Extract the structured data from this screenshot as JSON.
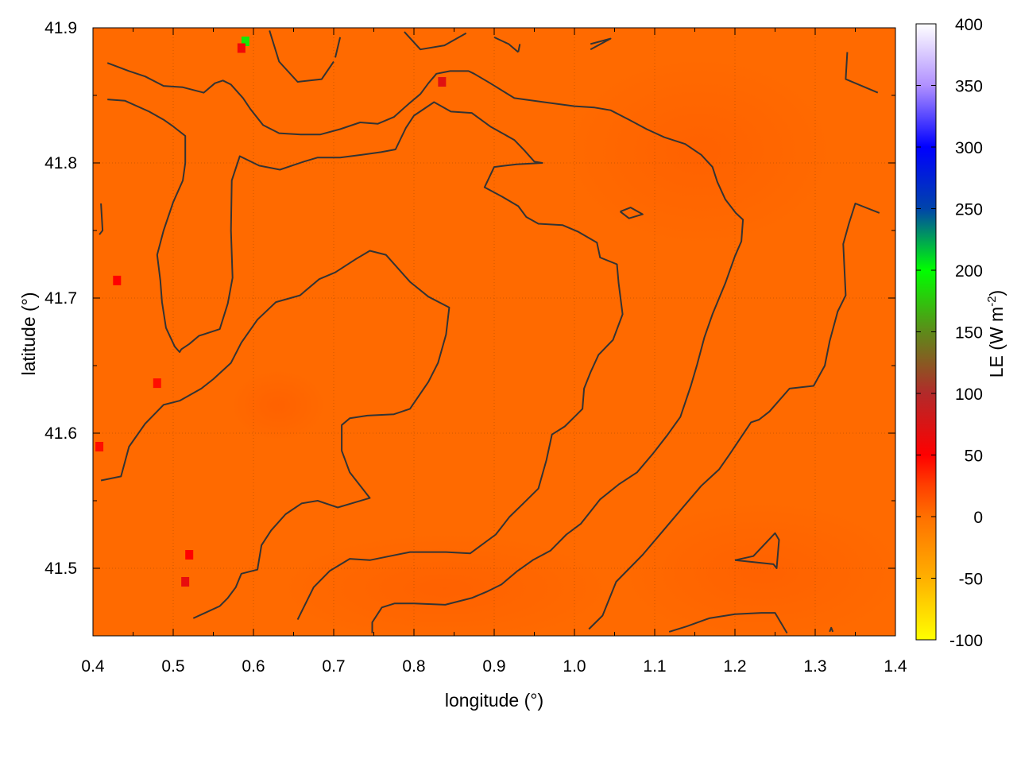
{
  "chart_data": {
    "type": "heatmap",
    "title": "",
    "xlabel": "longitude (°)",
    "ylabel": "latitude (°)",
    "xlim": [
      0.4,
      1.4
    ],
    "ylim": [
      41.45,
      41.9
    ],
    "x_ticks": [
      0.4,
      0.5,
      0.6,
      0.7,
      0.8,
      0.9,
      1.0,
      1.1,
      1.2,
      1.3,
      1.4
    ],
    "x_tick_labels": [
      "0.4",
      "0.5",
      "0.6",
      "0.7",
      "0.8",
      "0.9",
      "1.0",
      "1.1",
      "1.2",
      "1.3",
      "1.4"
    ],
    "y_ticks": [
      41.5,
      41.6,
      41.7,
      41.8,
      41.9
    ],
    "y_tick_labels": [
      "41.5",
      "41.6",
      "41.7",
      "41.8",
      "41.9"
    ],
    "grid": true,
    "colorbar": {
      "label": "LE (W m",
      "label_sup": "-2",
      "label_end": ")",
      "range": [
        -100,
        400
      ],
      "ticks": [
        -100,
        -50,
        0,
        50,
        100,
        150,
        200,
        250,
        300,
        350,
        400
      ],
      "tick_labels": [
        "-100",
        "-50",
        "0",
        "50",
        "100",
        "150",
        "200",
        "250",
        "300",
        "350",
        "400"
      ],
      "stops": [
        {
          "value": -100,
          "color": "#ffff00"
        },
        {
          "value": -50,
          "color": "#ffb000"
        },
        {
          "value": 0,
          "color": "#ff7000"
        },
        {
          "value": 25,
          "color": "#ff4000"
        },
        {
          "value": 50,
          "color": "#ff0000"
        },
        {
          "value": 100,
          "color": "#b22a2a"
        },
        {
          "value": 150,
          "color": "#5e8a1a"
        },
        {
          "value": 200,
          "color": "#00ff00"
        },
        {
          "value": 250,
          "color": "#0044aa"
        },
        {
          "value": 300,
          "color": "#0000ff"
        },
        {
          "value": 350,
          "color": "#b090ff"
        },
        {
          "value": 400,
          "color": "#ffffff"
        }
      ]
    },
    "field": {
      "background_value": 12,
      "background_color": "#ff6a00",
      "hotspots": [
        {
          "lon": 0.59,
          "lat": 41.89,
          "value": 190
        },
        {
          "lon": 0.585,
          "lat": 41.885,
          "value": 60
        },
        {
          "lon": 0.835,
          "lat": 41.86,
          "value": 70
        },
        {
          "lon": 0.43,
          "lat": 41.713,
          "value": 50
        },
        {
          "lon": 0.48,
          "lat": 41.637,
          "value": 45
        },
        {
          "lon": 0.408,
          "lat": 41.59,
          "value": 45
        },
        {
          "lon": 0.515,
          "lat": 41.49,
          "value": 65
        },
        {
          "lon": 0.52,
          "lat": 41.51,
          "value": 50
        }
      ]
    },
    "contour_color": "#333333",
    "contours": [
      [
        [
          0.418,
          41.874
        ],
        [
          0.445,
          41.868
        ],
        [
          0.465,
          41.864
        ],
        [
          0.488,
          41.857
        ],
        [
          0.512,
          41.856
        ],
        [
          0.538,
          41.852
        ],
        [
          0.552,
          41.859
        ],
        [
          0.562,
          41.861
        ],
        [
          0.572,
          41.858
        ],
        [
          0.587,
          41.848
        ],
        [
          0.596,
          41.84
        ],
        [
          0.612,
          41.828
        ],
        [
          0.632,
          41.822
        ],
        [
          0.659,
          41.821
        ],
        [
          0.683,
          41.821
        ],
        [
          0.708,
          41.825
        ],
        [
          0.733,
          41.83
        ],
        [
          0.755,
          41.829
        ],
        [
          0.775,
          41.834
        ],
        [
          0.794,
          41.844
        ],
        [
          0.808,
          41.851
        ],
        [
          0.818,
          41.859
        ],
        [
          0.828,
          41.866
        ],
        [
          0.845,
          41.868
        ],
        [
          0.868,
          41.868
        ],
        [
          0.875,
          41.866
        ],
        [
          0.895,
          41.859
        ],
        [
          0.925,
          41.848
        ],
        [
          0.962,
          41.845
        ],
        [
          1.0,
          41.842
        ],
        [
          1.025,
          41.841
        ],
        [
          1.045,
          41.839
        ],
        [
          1.068,
          41.832
        ],
        [
          1.09,
          41.825
        ],
        [
          1.112,
          41.819
        ],
        [
          1.138,
          41.814
        ],
        [
          1.158,
          41.806
        ],
        [
          1.172,
          41.797
        ],
        [
          1.178,
          41.786
        ],
        [
          1.188,
          41.773
        ],
        [
          1.201,
          41.763
        ],
        [
          1.21,
          41.758
        ],
        [
          1.208,
          41.742
        ],
        [
          1.2,
          41.731
        ],
        [
          1.188,
          41.711
        ],
        [
          1.172,
          41.688
        ],
        [
          1.162,
          41.671
        ],
        [
          1.153,
          41.651
        ],
        [
          1.145,
          41.635
        ],
        [
          1.132,
          41.612
        ],
        [
          1.115,
          41.598
        ],
        [
          1.098,
          41.585
        ],
        [
          1.078,
          41.571
        ],
        [
          1.055,
          41.562
        ],
        [
          1.032,
          41.551
        ],
        [
          1.008,
          41.533
        ],
        [
          0.99,
          41.525
        ],
        [
          0.97,
          41.513
        ],
        [
          0.948,
          41.506
        ],
        [
          0.929,
          41.498
        ],
        [
          0.909,
          41.488
        ],
        [
          0.892,
          41.483
        ],
        [
          0.872,
          41.478
        ],
        [
          0.839,
          41.473
        ],
        [
          0.8,
          41.474
        ],
        [
          0.776,
          41.474
        ],
        [
          0.76,
          41.471
        ],
        [
          0.748,
          41.46
        ],
        [
          0.748,
          41.452
        ]
      ],
      [
        [
          0.418,
          41.847
        ],
        [
          0.44,
          41.846
        ],
        [
          0.47,
          41.838
        ],
        [
          0.488,
          41.832
        ],
        [
          0.5,
          41.827
        ],
        [
          0.515,
          41.82
        ],
        [
          0.515,
          41.8
        ],
        [
          0.512,
          41.787
        ],
        [
          0.5,
          41.771
        ],
        [
          0.488,
          41.75
        ],
        [
          0.48,
          41.732
        ],
        [
          0.484,
          41.713
        ],
        [
          0.486,
          41.697
        ],
        [
          0.491,
          41.678
        ],
        [
          0.502,
          41.664
        ],
        [
          0.508,
          41.66
        ],
        [
          0.51,
          41.662
        ],
        [
          0.52,
          41.666
        ],
        [
          0.532,
          41.672
        ],
        [
          0.558,
          41.677
        ],
        [
          0.568,
          41.696
        ],
        [
          0.574,
          41.715
        ],
        [
          0.572,
          41.75
        ],
        [
          0.573,
          41.787
        ],
        [
          0.583,
          41.805
        ],
        [
          0.607,
          41.798
        ],
        [
          0.633,
          41.795
        ],
        [
          0.663,
          41.801
        ],
        [
          0.68,
          41.804
        ],
        [
          0.708,
          41.804
        ],
        [
          0.735,
          41.806
        ],
        [
          0.759,
          41.808
        ],
        [
          0.777,
          41.81
        ],
        [
          0.79,
          41.826
        ],
        [
          0.8,
          41.835
        ],
        [
          0.825,
          41.845
        ],
        [
          0.846,
          41.838
        ],
        [
          0.872,
          41.837
        ],
        [
          0.895,
          41.827
        ],
        [
          0.925,
          41.817
        ],
        [
          0.938,
          41.809
        ],
        [
          0.95,
          41.801
        ],
        [
          0.96,
          41.8
        ],
        [
          0.928,
          41.799
        ],
        [
          0.9,
          41.797
        ],
        [
          0.888,
          41.782
        ],
        [
          0.91,
          41.775
        ],
        [
          0.93,
          41.768
        ],
        [
          0.94,
          41.76
        ],
        [
          0.955,
          41.755
        ],
        [
          0.985,
          41.754
        ],
        [
          1.005,
          41.749
        ],
        [
          1.028,
          41.741
        ],
        [
          1.032,
          41.73
        ],
        [
          1.053,
          41.725
        ],
        [
          1.055,
          41.711
        ],
        [
          1.06,
          41.688
        ],
        [
          1.048,
          41.669
        ],
        [
          1.03,
          41.658
        ],
        [
          1.02,
          41.645
        ],
        [
          1.012,
          41.633
        ],
        [
          1.01,
          41.618
        ],
        [
          1.0,
          41.612
        ],
        [
          0.988,
          41.605
        ],
        [
          0.972,
          41.599
        ],
        [
          0.965,
          41.58
        ],
        [
          0.955,
          41.559
        ],
        [
          0.938,
          41.549
        ],
        [
          0.919,
          41.538
        ],
        [
          0.902,
          41.525
        ],
        [
          0.87,
          41.511
        ],
        [
          0.84,
          41.512
        ],
        [
          0.795,
          41.512
        ],
        [
          0.77,
          41.509
        ],
        [
          0.745,
          41.506
        ],
        [
          0.72,
          41.507
        ],
        [
          0.695,
          41.498
        ],
        [
          0.675,
          41.486
        ],
        [
          0.655,
          41.462
        ]
      ],
      [
        [
          0.41,
          41.77
        ],
        [
          0.412,
          41.75
        ],
        [
          0.408,
          41.747
        ]
      ],
      [
        [
          0.41,
          41.565
        ],
        [
          0.435,
          41.568
        ],
        [
          0.445,
          41.59
        ],
        [
          0.465,
          41.607
        ],
        [
          0.488,
          41.621
        ],
        [
          0.508,
          41.624
        ],
        [
          0.535,
          41.633
        ],
        [
          0.55,
          41.64
        ],
        [
          0.572,
          41.652
        ],
        [
          0.585,
          41.667
        ],
        [
          0.605,
          41.684
        ],
        [
          0.628,
          41.697
        ],
        [
          0.658,
          41.702
        ],
        [
          0.682,
          41.714
        ],
        [
          0.702,
          41.719
        ],
        [
          0.728,
          41.729
        ],
        [
          0.745,
          41.735
        ],
        [
          0.765,
          41.732
        ],
        [
          0.795,
          41.712
        ],
        [
          0.818,
          41.701
        ],
        [
          0.844,
          41.693
        ],
        [
          0.84,
          41.673
        ],
        [
          0.83,
          41.652
        ],
        [
          0.818,
          41.638
        ],
        [
          0.795,
          41.618
        ],
        [
          0.775,
          41.614
        ],
        [
          0.742,
          41.613
        ],
        [
          0.72,
          41.611
        ],
        [
          0.71,
          41.606
        ],
        [
          0.71,
          41.587
        ],
        [
          0.72,
          41.571
        ],
        [
          0.745,
          41.552
        ],
        [
          0.705,
          41.545
        ],
        [
          0.68,
          41.55
        ],
        [
          0.66,
          41.548
        ],
        [
          0.64,
          41.54
        ],
        [
          0.622,
          41.528
        ],
        [
          0.61,
          41.517
        ],
        [
          0.605,
          41.499
        ],
        [
          0.585,
          41.496
        ],
        [
          0.578,
          41.486
        ],
        [
          0.568,
          41.478
        ],
        [
          0.558,
          41.472
        ],
        [
          0.525,
          41.463
        ]
      ],
      [
        [
          1.018,
          41.455
        ],
        [
          1.035,
          41.465
        ],
        [
          1.052,
          41.49
        ],
        [
          1.085,
          41.51
        ],
        [
          1.115,
          41.531
        ],
        [
          1.135,
          41.545
        ],
        [
          1.158,
          41.561
        ],
        [
          1.18,
          41.573
        ],
        [
          1.193,
          41.584
        ],
        [
          1.22,
          41.608
        ],
        [
          1.23,
          41.61
        ],
        [
          1.243,
          41.616
        ],
        [
          1.268,
          41.633
        ],
        [
          1.298,
          41.635
        ],
        [
          1.312,
          41.65
        ],
        [
          1.318,
          41.668
        ],
        [
          1.328,
          41.69
        ],
        [
          1.338,
          41.702
        ],
        [
          1.335,
          41.74
        ],
        [
          1.342,
          41.755
        ],
        [
          1.35,
          41.77
        ],
        [
          1.38,
          41.763
        ]
      ],
      [
        [
          1.118,
          41.453
        ],
        [
          1.14,
          41.457
        ],
        [
          1.168,
          41.463
        ],
        [
          1.2,
          41.466
        ],
        [
          1.233,
          41.467
        ],
        [
          1.25,
          41.467
        ],
        [
          1.265,
          41.452
        ]
      ],
      [
        [
          1.2,
          41.506
        ],
        [
          1.223,
          41.509
        ],
        [
          1.25,
          41.526
        ],
        [
          1.255,
          41.521
        ],
        [
          1.252,
          41.5
        ],
        [
          1.248,
          41.503
        ],
        [
          1.2,
          41.506
        ]
      ],
      [
        [
          1.057,
          41.764
        ],
        [
          1.07,
          41.767
        ],
        [
          1.085,
          41.762
        ],
        [
          1.068,
          41.759
        ],
        [
          1.057,
          41.764
        ]
      ],
      [
        [
          0.62,
          41.898
        ],
        [
          0.632,
          41.875
        ],
        [
          0.655,
          41.86
        ],
        [
          0.685,
          41.862
        ],
        [
          0.7,
          41.875
        ]
      ],
      [
        [
          0.708,
          41.893
        ],
        [
          0.702,
          41.878
        ]
      ],
      [
        [
          0.788,
          41.897
        ],
        [
          0.808,
          41.884
        ],
        [
          0.838,
          41.887
        ],
        [
          0.865,
          41.896
        ]
      ],
      [
        [
          0.9,
          41.893
        ],
        [
          0.918,
          41.888
        ],
        [
          0.93,
          41.882
        ]
      ],
      [
        [
          0.932,
          41.888
        ],
        [
          0.93,
          41.882
        ]
      ],
      [
        [
          1.02,
          41.888
        ],
        [
          1.045,
          41.892
        ],
        [
          1.02,
          41.884
        ]
      ],
      [
        [
          1.34,
          41.882
        ],
        [
          1.338,
          41.862
        ],
        [
          1.378,
          41.852
        ]
      ],
      [
        [
          1.318,
          41.453
        ],
        [
          1.32,
          41.456
        ],
        [
          1.322,
          41.453
        ]
      ]
    ]
  }
}
